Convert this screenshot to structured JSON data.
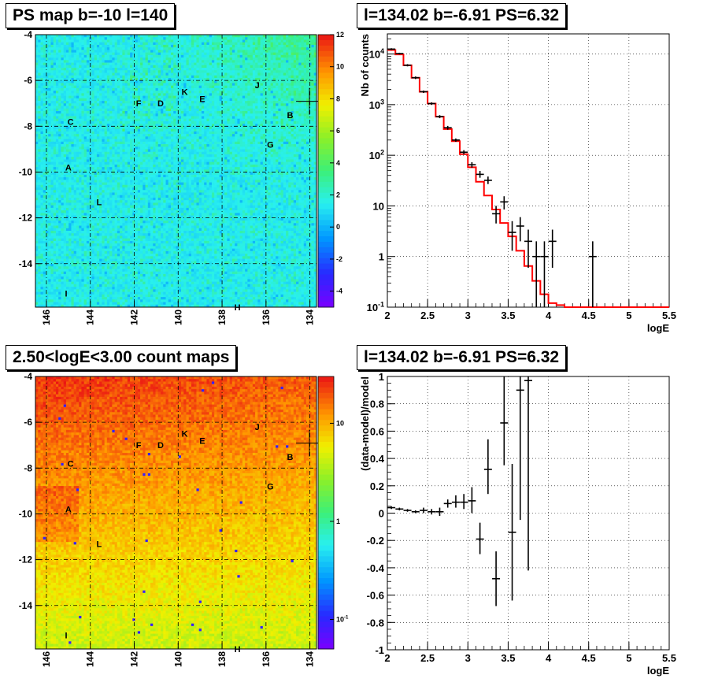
{
  "panels": {
    "map1_title": "PS map b=-10 l=140",
    "spec_title": "l=134.02 b=-6.91 PS=6.32",
    "map2_title": "2.50<logE<3.00 count maps",
    "resid_title": "l=134.02 b=-6.91 PS=6.32"
  },
  "colors": {
    "model_line": "#ff0000",
    "data_points": "#000000",
    "grid": "#000000",
    "marker": "#000000"
  },
  "chart_data": [
    {
      "type": "heatmap",
      "title": "PS map b=-10 l=140",
      "x_ticks": [
        "146",
        "144",
        "142",
        "140",
        "138",
        "136",
        "134"
      ],
      "y_ticks": [
        "-4",
        "-6",
        "-8",
        "-10",
        "-12",
        "-14"
      ],
      "xlim": [
        146.5,
        133.7
      ],
      "ylim": [
        -15.9,
        -4
      ],
      "colorbar_ticks": [
        "12",
        "10",
        "8",
        "6",
        "4",
        "2",
        "0",
        "-2",
        "-4"
      ],
      "colorbar_range": [
        -5,
        12
      ],
      "dominant_color": "#33ffee",
      "source_labels": [
        {
          "name": "A",
          "l": 145.0,
          "b": -9.8
        },
        {
          "name": "B",
          "l": 134.9,
          "b": -7.5
        },
        {
          "name": "C",
          "l": 144.9,
          "b": -7.8
        },
        {
          "name": "D",
          "l": 140.8,
          "b": -7.0
        },
        {
          "name": "E",
          "l": 138.9,
          "b": -6.8
        },
        {
          "name": "F",
          "l": 141.8,
          "b": -7.0
        },
        {
          "name": "G",
          "l": 135.8,
          "b": -8.8
        },
        {
          "name": "H",
          "l": 137.3,
          "b": -15.9
        },
        {
          "name": "I",
          "l": 145.1,
          "b": -15.3
        },
        {
          "name": "J",
          "l": 136.4,
          "b": -6.2
        },
        {
          "name": "K",
          "l": 139.7,
          "b": -6.5
        },
        {
          "name": "L",
          "l": 143.6,
          "b": -11.3
        }
      ],
      "marker": {
        "l": 134.02,
        "b": -6.91
      }
    },
    {
      "type": "line",
      "title": "l=134.02 b=-6.91 PS=6.32",
      "xlabel": "logE",
      "ylabel": "Nb of counts",
      "yscale": "log",
      "xlim": [
        2,
        5.5
      ],
      "ylim": [
        0.1,
        25000
      ],
      "x_ticks": [
        "2",
        "2.5",
        "3",
        "3.5",
        "4",
        "4.5",
        "5",
        "5.5"
      ],
      "y_ticks": [
        "10^-1",
        "1",
        "10",
        "10^2",
        "10^3",
        "10^4"
      ],
      "grid": true,
      "series": [
        {
          "style": "histogram",
          "edges": [
            2.0,
            2.1,
            2.2,
            2.3,
            2.4,
            2.5,
            2.6,
            2.7,
            2.8,
            2.9,
            3.0,
            3.1,
            3.2,
            3.3,
            3.4,
            3.5,
            3.6,
            3.7,
            3.8,
            3.9,
            4.0,
            4.1,
            4.2,
            4.3,
            4.4,
            4.5,
            4.6,
            4.7,
            4.8,
            4.9,
            5.0,
            5.1,
            5.2,
            5.3,
            5.4,
            5.5
          ],
          "values": [
            12000,
            9800,
            6000,
            3400,
            1800,
            1050,
            580,
            330,
            190,
            105,
            58,
            30,
            16,
            8.5,
            4.6,
            2.5,
            1.3,
            0.65,
            0.33,
            0.18,
            0.12,
            0.11,
            0.1,
            0.1,
            0.1,
            0.1,
            0.1,
            0.1,
            0.1,
            0.1,
            0.1,
            0.1,
            0.1,
            0.1,
            0.1
          ]
        },
        {
          "style": "errorbars",
          "points": [
            {
              "x": 2.05,
              "y": 12500,
              "lo": 12000,
              "hi": 13000
            },
            {
              "x": 2.15,
              "y": 10200,
              "lo": 9800,
              "hi": 10600
            },
            {
              "x": 2.25,
              "y": 6000,
              "lo": 5700,
              "hi": 6300
            },
            {
              "x": 2.35,
              "y": 3400,
              "lo": 3200,
              "hi": 3600
            },
            {
              "x": 2.45,
              "y": 1800,
              "lo": 1700,
              "hi": 1900
            },
            {
              "x": 2.55,
              "y": 1050,
              "lo": 990,
              "hi": 1110
            },
            {
              "x": 2.65,
              "y": 580,
              "lo": 540,
              "hi": 620
            },
            {
              "x": 2.75,
              "y": 350,
              "lo": 320,
              "hi": 380
            },
            {
              "x": 2.85,
              "y": 200,
              "lo": 185,
              "hi": 215
            },
            {
              "x": 2.95,
              "y": 115,
              "lo": 104,
              "hi": 126
            },
            {
              "x": 3.05,
              "y": 65,
              "lo": 57,
              "hi": 73
            },
            {
              "x": 3.15,
              "y": 42,
              "lo": 36,
              "hi": 49
            },
            {
              "x": 3.25,
              "y": 32,
              "lo": 27,
              "hi": 38
            },
            {
              "x": 3.35,
              "y": 7,
              "lo": 4.5,
              "hi": 10
            },
            {
              "x": 3.45,
              "y": 12,
              "lo": 8.5,
              "hi": 15.5
            },
            {
              "x": 3.55,
              "y": 3,
              "lo": 1.3,
              "hi": 5
            },
            {
              "x": 3.65,
              "y": 4,
              "lo": 2,
              "hi": 6
            },
            {
              "x": 3.75,
              "y": 2,
              "lo": 0.6,
              "hi": 3.4
            },
            {
              "x": 3.85,
              "y": 1,
              "lo": 0.1,
              "hi": 2
            },
            {
              "x": 3.95,
              "y": 1,
              "lo": 0.1,
              "hi": 2
            },
            {
              "x": 4.05,
              "y": 2,
              "lo": 0.6,
              "hi": 3.4
            },
            {
              "x": 4.55,
              "y": 1,
              "lo": 0.1,
              "hi": 2
            }
          ]
        }
      ]
    },
    {
      "type": "heatmap",
      "title": "2.50<logE<3.00 count maps",
      "x_ticks": [
        "146",
        "144",
        "142",
        "140",
        "138",
        "136",
        "134"
      ],
      "y_ticks": [
        "-4",
        "-6",
        "-8",
        "-10",
        "-12",
        "-14"
      ],
      "xlim": [
        146.5,
        133.7
      ],
      "ylim": [
        -15.9,
        -4
      ],
      "colorbar_ticks": [
        "10",
        "1",
        "10^-1"
      ],
      "colorbar_scale": "log",
      "colorbar_range": [
        0.05,
        30
      ],
      "gradient_top_color": "#ee2a20",
      "gradient_bottom_color": "#b6f030",
      "source_labels": [
        {
          "name": "A",
          "l": 145.0,
          "b": -9.8
        },
        {
          "name": "B",
          "l": 134.9,
          "b": -7.5
        },
        {
          "name": "C",
          "l": 144.9,
          "b": -7.8
        },
        {
          "name": "D",
          "l": 140.8,
          "b": -7.0
        },
        {
          "name": "E",
          "l": 138.9,
          "b": -6.8
        },
        {
          "name": "F",
          "l": 141.8,
          "b": -7.0
        },
        {
          "name": "G",
          "l": 135.8,
          "b": -8.8
        },
        {
          "name": "H",
          "l": 137.3,
          "b": -15.9
        },
        {
          "name": "I",
          "l": 145.1,
          "b": -15.3
        },
        {
          "name": "J",
          "l": 136.4,
          "b": -6.2
        },
        {
          "name": "K",
          "l": 139.7,
          "b": -6.5
        },
        {
          "name": "L",
          "l": 143.6,
          "b": -11.3
        }
      ],
      "marker": {
        "l": 134.02,
        "b": -6.91
      }
    },
    {
      "type": "scatter",
      "title": "l=134.02 b=-6.91 PS=6.32",
      "xlabel": "logE",
      "ylabel": "(data-model)/model",
      "xlim": [
        2,
        5.5
      ],
      "ylim": [
        -1,
        1
      ],
      "x_ticks": [
        "2",
        "2.5",
        "3",
        "3.5",
        "4",
        "4.5",
        "5",
        "5.5"
      ],
      "y_ticks": [
        "1",
        "0.8",
        "0.6",
        "0.4",
        "0.2",
        "0",
        "-0.2",
        "-0.4",
        "-0.6",
        "-0.8",
        "-1"
      ],
      "grid": true,
      "points": [
        {
          "x": 2.05,
          "y": 0.04,
          "lo": 0.03,
          "hi": 0.05
        },
        {
          "x": 2.15,
          "y": 0.03,
          "lo": 0.02,
          "hi": 0.04
        },
        {
          "x": 2.25,
          "y": 0.02,
          "lo": 0.01,
          "hi": 0.03
        },
        {
          "x": 2.35,
          "y": 0.01,
          "lo": 0.0,
          "hi": 0.02
        },
        {
          "x": 2.45,
          "y": 0.02,
          "lo": 0.0,
          "hi": 0.04
        },
        {
          "x": 2.55,
          "y": 0.01,
          "lo": -0.01,
          "hi": 0.03
        },
        {
          "x": 2.65,
          "y": 0.01,
          "lo": -0.02,
          "hi": 0.04
        },
        {
          "x": 2.75,
          "y": 0.07,
          "lo": 0.04,
          "hi": 0.1
        },
        {
          "x": 2.85,
          "y": 0.08,
          "lo": 0.04,
          "hi": 0.13
        },
        {
          "x": 2.95,
          "y": 0.08,
          "lo": 0.03,
          "hi": 0.14
        },
        {
          "x": 3.05,
          "y": 0.09,
          "lo": 0.0,
          "hi": 0.19
        },
        {
          "x": 3.15,
          "y": -0.19,
          "lo": -0.3,
          "hi": -0.07
        },
        {
          "x": 3.25,
          "y": 0.32,
          "lo": 0.14,
          "hi": 0.54
        },
        {
          "x": 3.35,
          "y": -0.48,
          "lo": -0.68,
          "hi": -0.28
        },
        {
          "x": 3.45,
          "y": 0.66,
          "lo": 0.35,
          "hi": 1.0
        },
        {
          "x": 3.55,
          "y": -0.14,
          "lo": -0.64,
          "hi": 0.36
        },
        {
          "x": 3.65,
          "y": 0.9,
          "lo": -0.05,
          "hi": 1.0
        },
        {
          "x": 3.75,
          "y": 0.97,
          "lo": -0.42,
          "hi": 1.0
        }
      ]
    }
  ]
}
